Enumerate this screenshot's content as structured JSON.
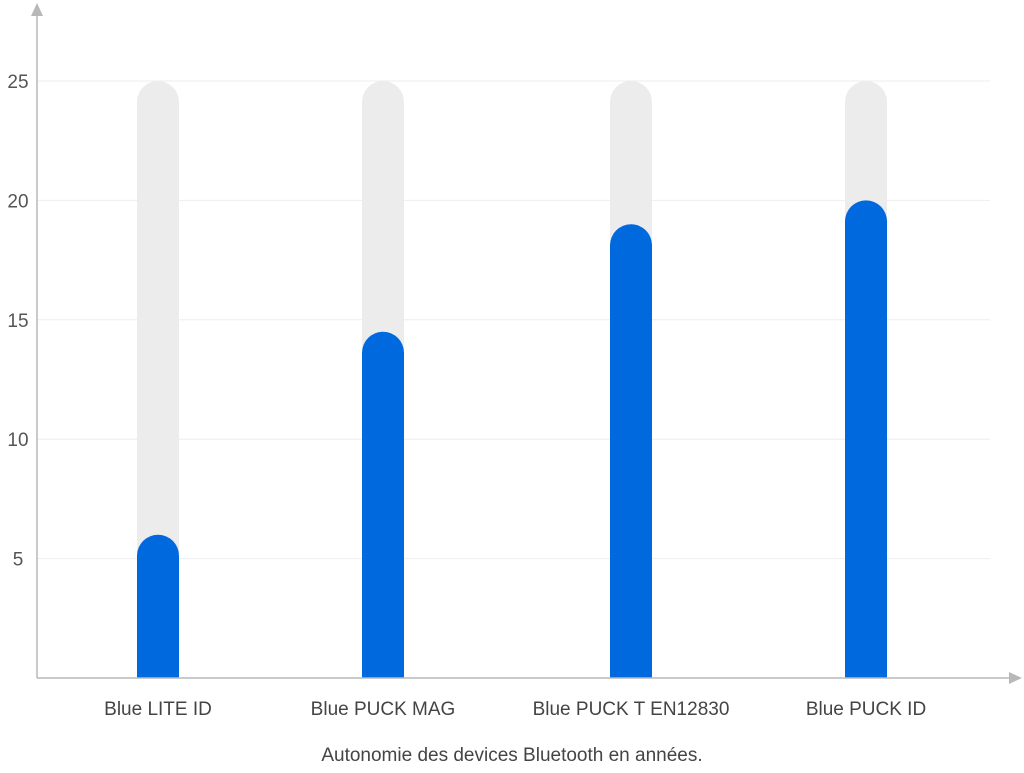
{
  "chart_data": {
    "type": "bar",
    "categories": [
      "Blue LITE ID",
      "Blue PUCK MAG",
      "Blue PUCK T EN12830",
      "Blue PUCK ID"
    ],
    "values": [
      6,
      14.5,
      19,
      20
    ],
    "background_max": 25,
    "xlabel": "Autonomie des devices Bluetooth en années.",
    "ylabel": "",
    "title": "",
    "ylim": [
      0,
      25
    ],
    "yticks": [
      5,
      10,
      15,
      20,
      25
    ],
    "grid": true,
    "legend": "none",
    "bar_color": "#0069DE",
    "track_color": "#ECECEC",
    "axis_color": "#B8B8B8",
    "grid_color": "#EEEEEE"
  }
}
